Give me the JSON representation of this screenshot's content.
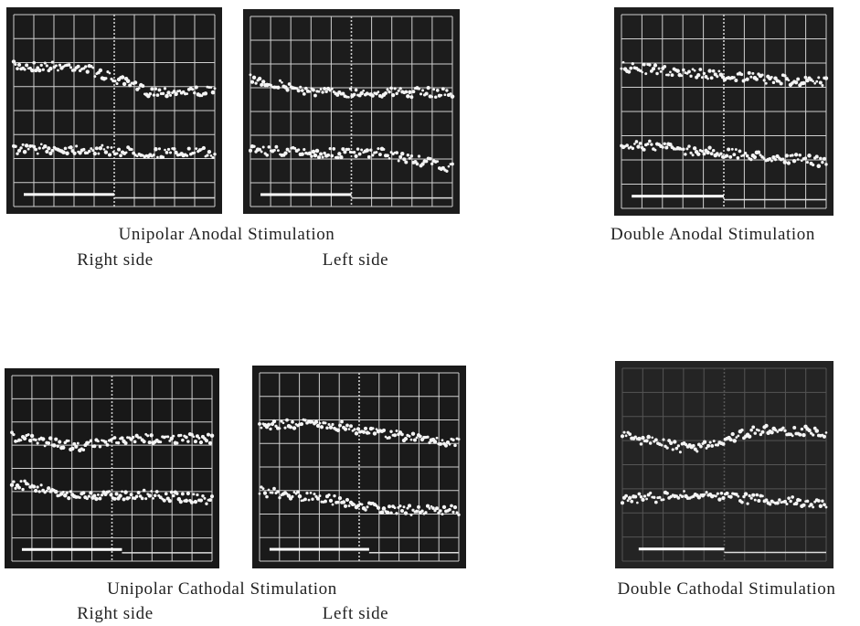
{
  "figure": {
    "rows": [
      {
        "unipolar_caption": "Unipolar Anodal Stimulation",
        "right_label": "Right side",
        "left_label": "Left side",
        "double_caption": "Double Anodal Stimulation"
      },
      {
        "unipolar_caption": "Unipolar Cathodal Stimulation",
        "right_label": "Right side",
        "left_label": "Left side",
        "double_caption": "Double Cathodal Stimulation"
      }
    ]
  }
}
